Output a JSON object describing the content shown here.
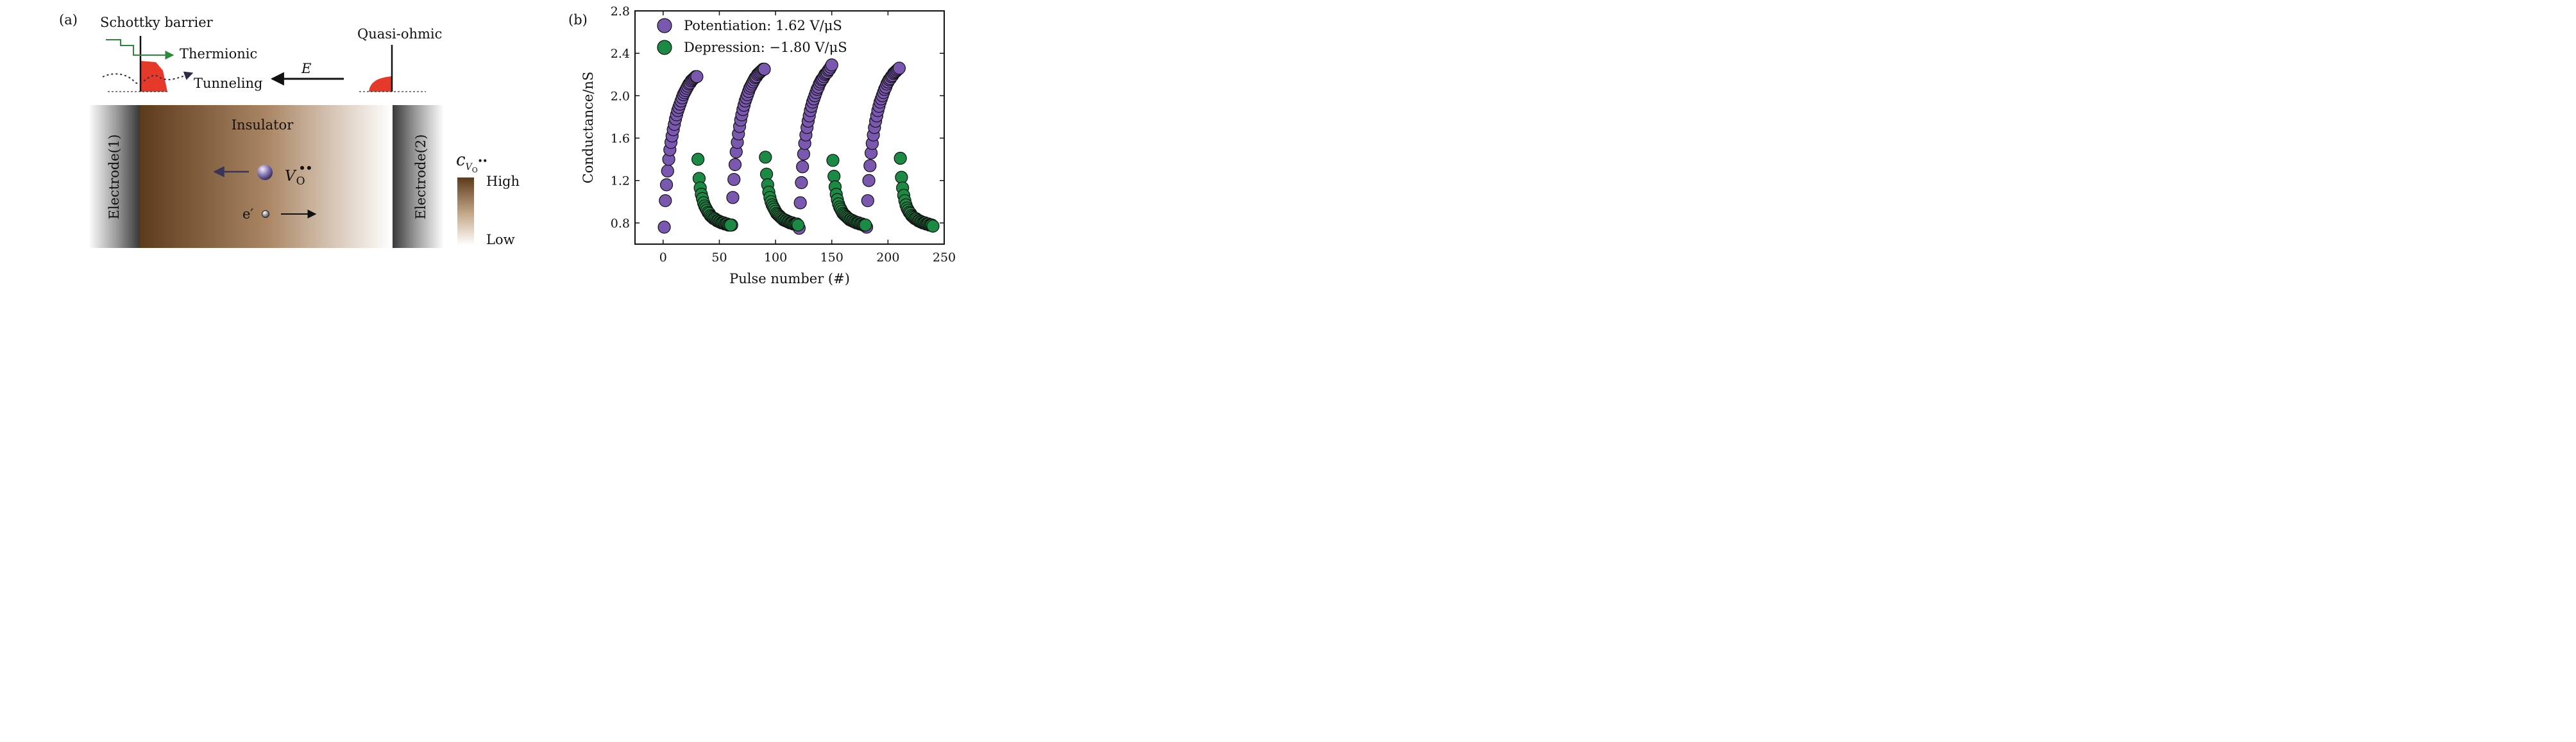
{
  "panel_a": {
    "panel_label": "(a)",
    "schottky_label": "Schottky barrier",
    "quasi_ohmic_label": "Quasi-ohmic",
    "thermionic_label": "Thermionic",
    "tunneling_label": "Tunneling",
    "field_symbol": "E",
    "insulator_label": "Insulator",
    "electrode_left_label": "Electrode(1)",
    "electrode_right_label": "Electrode(2)",
    "vacancy_symbol": "V",
    "vacancy_subscript": "O",
    "vacancy_superscript": "••",
    "electron_symbol": "e′",
    "colorbar_symbol": "c",
    "colorbar_subscript_v": "V",
    "colorbar_subscript_o": "O",
    "colorbar_superscript": "••",
    "colorbar_high": "High",
    "colorbar_low": "Low",
    "colors": {
      "insulator_high": "#5c3b1c",
      "insulator_low": "#ffffff",
      "electrode_dark": "#3a3a3a",
      "thermionic_arrow": "#2a8a3a",
      "barrier_fill": "#e53a2a",
      "vacancy_arrow": "#3a3458"
    }
  },
  "panel_b": {
    "panel_label": "(b)",
    "chart_data": {
      "type": "scatter",
      "xlabel": "Pulse number (#)",
      "ylabel": "Conductance/nS",
      "xlim": [
        -25,
        250
      ],
      "ylim": [
        0.6,
        2.8
      ],
      "xticks": [
        0,
        50,
        100,
        150,
        200,
        250
      ],
      "yticks": [
        0.8,
        1.2,
        1.6,
        2.0,
        2.4,
        2.8
      ],
      "legend_position": "top-left",
      "series": [
        {
          "name": "Potentiation: 1.62 V/μS",
          "color": "#7b58b0",
          "x": [
            1,
            2,
            3,
            4,
            5,
            6,
            7,
            8,
            9,
            10,
            11,
            12,
            13,
            14,
            15,
            16,
            17,
            18,
            19,
            20,
            21,
            22,
            23,
            24,
            25,
            26,
            27,
            28,
            29,
            30,
            61,
            62,
            63,
            64,
            65,
            66,
            67,
            68,
            69,
            70,
            71,
            72,
            73,
            74,
            75,
            76,
            77,
            78,
            79,
            80,
            81,
            82,
            83,
            84,
            85,
            86,
            87,
            88,
            89,
            90,
            121,
            122,
            123,
            124,
            125,
            126,
            127,
            128,
            129,
            130,
            131,
            132,
            133,
            134,
            135,
            136,
            137,
            138,
            139,
            140,
            141,
            142,
            143,
            144,
            145,
            146,
            147,
            148,
            149,
            150,
            181,
            182,
            183,
            184,
            185,
            186,
            187,
            188,
            189,
            190,
            191,
            192,
            193,
            194,
            195,
            196,
            197,
            198,
            199,
            200,
            201,
            202,
            203,
            204,
            205,
            206,
            207,
            208,
            209,
            210
          ],
          "y": [
            0.76,
            1.01,
            1.16,
            1.29,
            1.4,
            1.49,
            1.56,
            1.62,
            1.68,
            1.73,
            1.78,
            1.82,
            1.86,
            1.89,
            1.92,
            1.95,
            1.98,
            2.01,
            2.03,
            2.05,
            2.07,
            2.09,
            2.11,
            2.12,
            2.14,
            2.15,
            2.16,
            2.17,
            2.18,
            2.18,
            0.78,
            1.04,
            1.21,
            1.35,
            1.47,
            1.56,
            1.64,
            1.71,
            1.77,
            1.82,
            1.87,
            1.91,
            1.95,
            1.98,
            2.01,
            2.04,
            2.07,
            2.09,
            2.11,
            2.13,
            2.15,
            2.17,
            2.18,
            2.2,
            2.21,
            2.22,
            2.23,
            2.24,
            2.25,
            2.25,
            0.75,
            0.99,
            1.18,
            1.33,
            1.45,
            1.55,
            1.63,
            1.7,
            1.76,
            1.81,
            1.86,
            1.9,
            1.94,
            1.97,
            2.0,
            2.03,
            2.06,
            2.08,
            2.11,
            2.13,
            2.15,
            2.16,
            2.18,
            2.2,
            2.21,
            2.22,
            2.24,
            2.25,
            2.27,
            2.29,
            0.76,
            1.01,
            1.2,
            1.34,
            1.46,
            1.55,
            1.63,
            1.7,
            1.76,
            1.81,
            1.86,
            1.9,
            1.94,
            1.97,
            2.0,
            2.03,
            2.06,
            2.08,
            2.11,
            2.13,
            2.15,
            2.16,
            2.18,
            2.19,
            2.21,
            2.22,
            2.23,
            2.24,
            2.25,
            2.26
          ]
        },
        {
          "name": "Depression: −1.80 V/μS",
          "color": "#1a8a45",
          "x": [
            31,
            32,
            33,
            34,
            35,
            36,
            37,
            38,
            39,
            40,
            41,
            42,
            43,
            44,
            45,
            46,
            47,
            48,
            49,
            50,
            51,
            52,
            53,
            54,
            55,
            56,
            57,
            58,
            59,
            60,
            91,
            92,
            93,
            94,
            95,
            96,
            97,
            98,
            99,
            100,
            101,
            102,
            103,
            104,
            105,
            106,
            107,
            108,
            109,
            110,
            111,
            112,
            113,
            114,
            115,
            116,
            117,
            118,
            119,
            120,
            151,
            152,
            153,
            154,
            155,
            156,
            157,
            158,
            159,
            160,
            161,
            162,
            163,
            164,
            165,
            166,
            167,
            168,
            169,
            170,
            171,
            172,
            173,
            174,
            175,
            176,
            177,
            178,
            179,
            180,
            211,
            212,
            213,
            214,
            215,
            216,
            217,
            218,
            219,
            220,
            221,
            222,
            223,
            224,
            225,
            226,
            227,
            228,
            229,
            230,
            231,
            232,
            233,
            234,
            235,
            236,
            237,
            238,
            239,
            240
          ],
          "y": [
            1.4,
            1.22,
            1.13,
            1.07,
            1.03,
            0.99,
            0.96,
            0.94,
            0.92,
            0.9,
            0.89,
            0.87,
            0.86,
            0.85,
            0.84,
            0.84,
            0.83,
            0.82,
            0.82,
            0.81,
            0.81,
            0.8,
            0.8,
            0.8,
            0.79,
            0.79,
            0.79,
            0.78,
            0.78,
            0.78,
            1.42,
            1.26,
            1.16,
            1.09,
            1.04,
            1.0,
            0.97,
            0.95,
            0.93,
            0.91,
            0.89,
            0.88,
            0.87,
            0.86,
            0.85,
            0.84,
            0.83,
            0.83,
            0.82,
            0.82,
            0.81,
            0.81,
            0.8,
            0.8,
            0.8,
            0.79,
            0.79,
            0.79,
            0.79,
            0.78,
            1.39,
            1.24,
            1.14,
            1.07,
            1.02,
            0.98,
            0.95,
            0.93,
            0.91,
            0.89,
            0.88,
            0.87,
            0.86,
            0.85,
            0.84,
            0.83,
            0.83,
            0.82,
            0.82,
            0.81,
            0.81,
            0.8,
            0.8,
            0.8,
            0.79,
            0.79,
            0.79,
            0.78,
            0.78,
            0.78,
            1.41,
            1.23,
            1.13,
            1.06,
            1.01,
            0.97,
            0.94,
            0.92,
            0.9,
            0.89,
            0.87,
            0.86,
            0.85,
            0.84,
            0.84,
            0.83,
            0.82,
            0.82,
            0.81,
            0.81,
            0.8,
            0.8,
            0.8,
            0.79,
            0.79,
            0.79,
            0.78,
            0.78,
            0.78,
            0.77
          ]
        }
      ]
    }
  }
}
